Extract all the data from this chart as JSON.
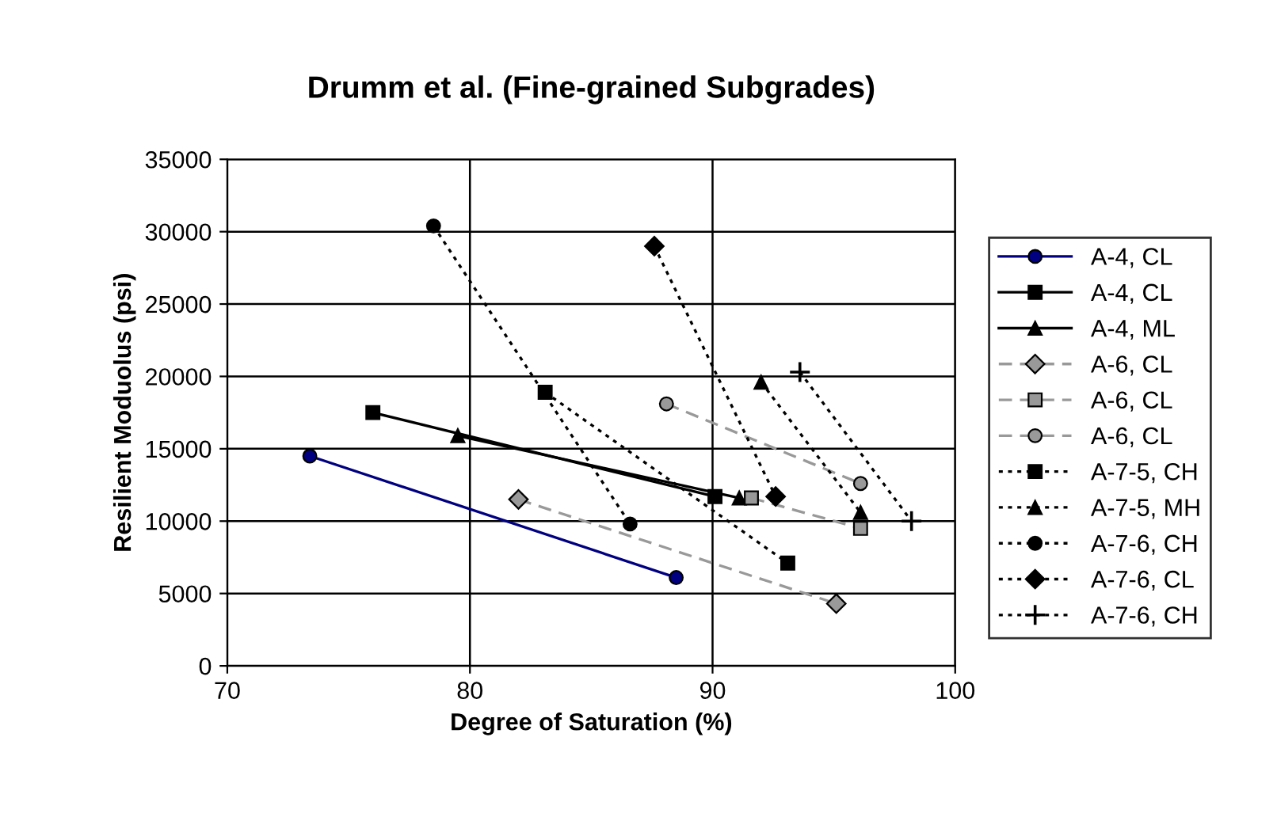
{
  "chart_data": {
    "type": "line",
    "title": "Drumm et al. (Fine-grained Subgrades)",
    "xlabel": "Degree of Saturation (%)",
    "ylabel": "Resilient Moduolus (psi)",
    "xlim": [
      70,
      100
    ],
    "xticks": [
      70,
      80,
      90,
      100
    ],
    "ylim": [
      0,
      35000
    ],
    "yticks": [
      0,
      5000,
      10000,
      15000,
      20000,
      25000,
      30000,
      35000
    ],
    "grid": true,
    "legend": "right",
    "series": [
      {
        "name": "A-4, CL",
        "color": "#000080",
        "marker": "circle",
        "line_style": "solid",
        "x": [
          73.4,
          88.5
        ],
        "values": [
          14500,
          6100
        ]
      },
      {
        "name": "A-4, CL",
        "color": "#000000",
        "marker": "square",
        "line_style": "solid",
        "x": [
          76.0,
          90.1
        ],
        "values": [
          17500,
          11700
        ]
      },
      {
        "name": "A-4, ML",
        "color": "#000000",
        "marker": "triangle",
        "line_style": "solid",
        "x": [
          79.5,
          91.1
        ],
        "values": [
          15900,
          11600
        ]
      },
      {
        "name": "A-6, CL",
        "color": "#999999",
        "marker": "diamond",
        "line_style": "dashed",
        "x": [
          82.0,
          95.1
        ],
        "values": [
          11500,
          4300
        ]
      },
      {
        "name": "A-6, CL",
        "color": "#999999",
        "marker": "square",
        "line_style": "dashed",
        "x": [
          91.6,
          96.1
        ],
        "values": [
          11600,
          9500
        ]
      },
      {
        "name": "A-6, CL",
        "color": "#999999",
        "marker": "circle",
        "line_style": "dashed",
        "x": [
          88.1,
          96.1
        ],
        "values": [
          18100,
          12600
        ]
      },
      {
        "name": "A-7-5, CH",
        "color": "#000000",
        "marker": "square",
        "line_style": "dotted",
        "x": [
          83.1,
          93.1
        ],
        "values": [
          18900,
          7100
        ]
      },
      {
        "name": "A-7-5, MH",
        "color": "#000000",
        "marker": "triangle",
        "line_style": "dotted",
        "x": [
          92.0,
          96.1
        ],
        "values": [
          19600,
          10600
        ]
      },
      {
        "name": "A-7-6, CH",
        "color": "#000000",
        "marker": "circle",
        "line_style": "dotted",
        "x": [
          78.5,
          86.6
        ],
        "values": [
          30400,
          9800
        ]
      },
      {
        "name": "A-7-6, CL",
        "color": "#000000",
        "marker": "diamond",
        "line_style": "dotted",
        "x": [
          87.6,
          92.6
        ],
        "values": [
          29000,
          11700
        ]
      },
      {
        "name": "A-7-6, CH",
        "color": "#000000",
        "marker": "cross",
        "line_style": "dotted",
        "x": [
          93.6,
          98.2
        ],
        "values": [
          20300,
          10000
        ]
      }
    ]
  }
}
